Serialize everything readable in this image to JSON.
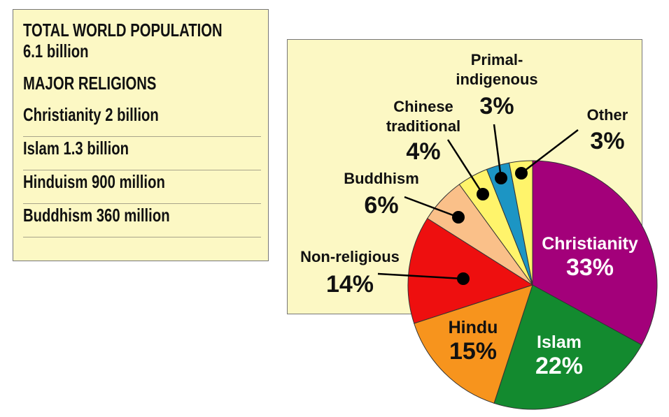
{
  "info": {
    "population_heading": "TOTAL WORLD POPULATION",
    "population_value": "6.1 billion",
    "religions_heading": "MAJOR RELIGIONS",
    "religions": [
      "Christianity 2 billion",
      "Islam 1.3 billion",
      "Hinduism 900 million",
      "Buddhism 360 million"
    ]
  },
  "chart_data": {
    "type": "pie",
    "title": "",
    "slices": [
      {
        "label": "Christianity",
        "value": 33,
        "display": "33%",
        "color": "#a3007a"
      },
      {
        "label": "Islam",
        "value": 22,
        "display": "22%",
        "color": "#138a2f"
      },
      {
        "label": "Hindu",
        "value": 15,
        "display": "15%",
        "color": "#f7941d"
      },
      {
        "label": "Non-religious",
        "value": 14,
        "display": "14%",
        "color": "#ee0f0f"
      },
      {
        "label": "Buddhism",
        "value": 6,
        "display": "6%",
        "color": "#fac089"
      },
      {
        "label": "Chinese traditional",
        "value": 4,
        "display": "4%",
        "color": "#fff46b"
      },
      {
        "label": "Primal-indigenous",
        "value": 3,
        "display": "3%",
        "color": "#1c95c4"
      },
      {
        "label": "Other",
        "value": 3,
        "display": "3%",
        "color": "#fff46b"
      }
    ]
  }
}
